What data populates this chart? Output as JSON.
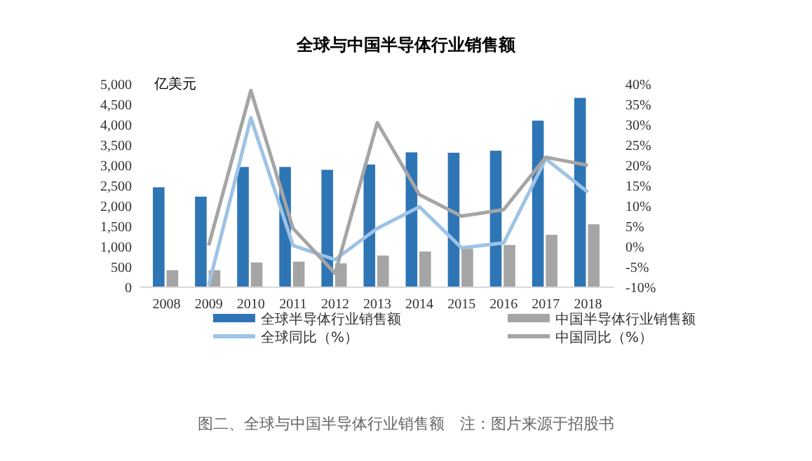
{
  "chart_data": {
    "type": "bar",
    "title": "全球与中国半导体行业销售额",
    "ylabel": "亿美元",
    "categories": [
      "2008",
      "2009",
      "2010",
      "2011",
      "2012",
      "2013",
      "2014",
      "2015",
      "2016",
      "2017",
      "2018"
    ],
    "series": [
      {
        "name": "全球半导体行业销售额",
        "color": "#2e75b6",
        "values": [
          2460,
          2230,
          2960,
          2960,
          2890,
          3020,
          3320,
          3310,
          3360,
          4100,
          4660
        ]
      },
      {
        "name": "中国半导体行业销售额",
        "color": "#a5a5a5",
        "values": [
          420,
          420,
          610,
          630,
          590,
          780,
          880,
          950,
          1040,
          1290,
          1550
        ]
      },
      {
        "name": "全球同比（%）",
        "type": "line",
        "axis": "y2",
        "color": "#9dc3e6",
        "values": [
          null,
          -9.5,
          31.7,
          0.3,
          -3.2,
          4.5,
          9.8,
          -0.3,
          0.9,
          21.6,
          13.4
        ]
      },
      {
        "name": "中国同比（%）",
        "type": "line",
        "axis": "y2",
        "color": "#a5a5a5",
        "values": [
          null,
          0.3,
          38.4,
          4.5,
          -6.6,
          30.5,
          12.8,
          7.5,
          9.1,
          22,
          20
        ]
      }
    ],
    "ylim": [
      0,
      5000
    ],
    "yticks": [
      {
        "value": 0,
        "label": "0"
      },
      {
        "value": 500,
        "label": "500"
      },
      {
        "value": 1000,
        "label": "1,000"
      },
      {
        "value": 1500,
        "label": "1,500"
      },
      {
        "value": 2000,
        "label": "2,000"
      },
      {
        "value": 2500,
        "label": "2,500"
      },
      {
        "value": 3000,
        "label": "3,000"
      },
      {
        "value": 3500,
        "label": "3,500"
      },
      {
        "value": 4000,
        "label": "4,000"
      },
      {
        "value": 4500,
        "label": "4,500"
      },
      {
        "value": 5000,
        "label": "5,000"
      }
    ],
    "y2lim": [
      -10,
      40
    ],
    "y2ticks": [
      {
        "value": -10,
        "label": "-10%"
      },
      {
        "value": -5,
        "label": "-5%"
      },
      {
        "value": 0,
        "label": "0%"
      },
      {
        "value": 5,
        "label": "5%"
      },
      {
        "value": 10,
        "label": "10%"
      },
      {
        "value": 15,
        "label": "15%"
      },
      {
        "value": 20,
        "label": "20%"
      },
      {
        "value": 25,
        "label": "25%"
      },
      {
        "value": 30,
        "label": "30%"
      },
      {
        "value": 35,
        "label": "35%"
      },
      {
        "value": 40,
        "label": "40%"
      }
    ],
    "legend": "bottom",
    "grid": false,
    "marker": "none",
    "line_style": "solid",
    "annotations": [
      "图二、全球与中国半导体行业销售额　注：图片来源于招股书"
    ]
  }
}
